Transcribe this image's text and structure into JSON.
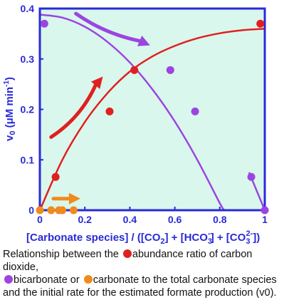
{
  "chart_data": {
    "type": "scatter",
    "ylabel": "v0 (μM min-1)",
    "xlim": [
      0,
      1
    ],
    "ylim": [
      0,
      0.4
    ],
    "x_ticks": [
      "0",
      "0.2",
      "0.4",
      "0.6",
      "0.8",
      "1"
    ],
    "y_ticks": [
      "0",
      "0.1",
      "0.2",
      "0.3",
      "0.4"
    ],
    "grid": false,
    "series": [
      {
        "color": "#e02020",
        "points": [
          [
            0.07,
            0.066
          ],
          [
            0.31,
            0.196
          ],
          [
            0.42,
            0.278
          ],
          [
            0.98,
            0.37
          ]
        ],
        "curve": [
          [
            0.0,
            0.0
          ],
          [
            0.1,
            0.1
          ],
          [
            0.2,
            0.175
          ],
          [
            0.3,
            0.232
          ],
          [
            0.4,
            0.275
          ],
          [
            0.5,
            0.305
          ],
          [
            0.6,
            0.326
          ],
          [
            0.7,
            0.341
          ],
          [
            0.8,
            0.351
          ],
          [
            0.9,
            0.357
          ],
          [
            1.0,
            0.36
          ]
        ]
      },
      {
        "color": "#9b45e0",
        "points": [
          [
            0.02,
            0.37
          ],
          [
            0.58,
            0.278
          ],
          [
            0.69,
            0.196
          ],
          [
            0.94,
            0.066
          ],
          [
            1.0,
            0.0
          ]
        ],
        "curve": [
          [
            0.0,
            0.388
          ],
          [
            0.1,
            0.382
          ],
          [
            0.2,
            0.364
          ],
          [
            0.3,
            0.334
          ],
          [
            0.4,
            0.293
          ],
          [
            0.5,
            0.24
          ],
          [
            0.6,
            0.176
          ],
          [
            0.7,
            0.1
          ],
          [
            0.8,
            0.014
          ],
          [
            0.82,
            0.0
          ]
        ],
        "curve_tail": [
          [
            0.93,
            0.075
          ],
          [
            1.0,
            0.0
          ]
        ]
      },
      {
        "color": "#f08a1c",
        "points": [
          [
            0.0,
            0.0
          ],
          [
            0.05,
            0.0
          ],
          [
            0.085,
            0.0
          ],
          [
            0.1,
            0.0
          ],
          [
            0.15,
            0.0
          ]
        ]
      }
    ],
    "arrows": [
      {
        "color": "#e02020",
        "from": [
          0.05,
          0.145
        ],
        "to": [
          0.28,
          0.265
        ]
      },
      {
        "color": "#9b45e0",
        "from": [
          0.16,
          0.39
        ],
        "to": [
          0.49,
          0.327
        ]
      },
      {
        "color": "#f08a1c",
        "from": [
          0.06,
          0.023
        ],
        "to": [
          0.18,
          0.023
        ]
      }
    ],
    "colors": {
      "axis": "#2a2ad8",
      "plot_bg": "#d9f7ec"
    }
  },
  "xlabel_parts": {
    "p1": "[Carbonate species] / ([CO",
    "s1": "2",
    "p2": "] + [HCO",
    "s2": "3",
    "sup2": "-",
    "p3": "] + [CO",
    "s3": "3",
    "sup3": "2-",
    "p4": "])"
  },
  "caption": {
    "t1": "Relationship between the ",
    "t2": "abundance ratio of carbon dioxide,",
    "t3": "bicarbonate or ",
    "t4": "carbonate to the total carbonate species",
    "t5": "and the initial rate for the estimated formate production (v0)."
  }
}
